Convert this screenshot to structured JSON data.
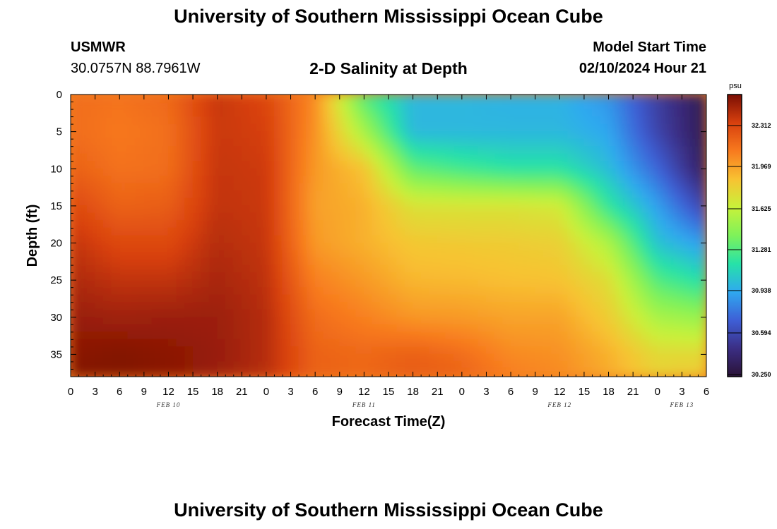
{
  "header": {
    "title": "University of Southern Mississippi Ocean Cube",
    "station": "USMWR",
    "coords": "30.0757N  88.7961W",
    "plot_title": "2-D Salinity at Depth",
    "model_start_label": "Model Start Time",
    "model_start_value": "02/10/2024 Hour 21"
  },
  "footer": {
    "title": "University of Southern Mississippi Ocean Cube"
  },
  "colorbar": {
    "unit": "psu",
    "ticks": [
      "32.312",
      "31.969",
      "31.625",
      "31.281",
      "30.938",
      "30.594",
      "30.250"
    ],
    "colormap": [
      "#2a1236",
      "#3b2e84",
      "#3e5fd6",
      "#2fa9f0",
      "#26e2a8",
      "#7ef25a",
      "#c8f23a",
      "#f8c232",
      "#f87a1e",
      "#d8400e",
      "#7a0e04"
    ]
  },
  "chart_data": {
    "type": "heatmap",
    "title": "2-D Salinity at Depth",
    "xlabel": "Forecast Time(Z)",
    "ylabel": "Depth (ft)",
    "x_tick_labels": [
      "0",
      "3",
      "6",
      "9",
      "12",
      "15",
      "18",
      "21",
      "0",
      "3",
      "6",
      "9",
      "12",
      "15",
      "18",
      "21",
      "0",
      "3",
      "6",
      "9",
      "12",
      "15",
      "18",
      "21",
      "0",
      "3",
      "6"
    ],
    "date_labels": [
      "FEB 10",
      "FEB 11",
      "FEB 12",
      "FEB 13"
    ],
    "y_tick_labels": [
      "0",
      "5",
      "10",
      "15",
      "20",
      "25",
      "30",
      "35"
    ],
    "x_range_hours": [
      0,
      78
    ],
    "ylim": [
      0,
      38
    ],
    "value_range": [
      30.25,
      32.5
    ],
    "unit": "psu",
    "description_of_field": "Approximate salinity (psu) by forecast hour (rows) and depth (columns)",
    "depths_ft": [
      0,
      5,
      10,
      15,
      20,
      25,
      30,
      35,
      38
    ],
    "hours": [
      0,
      6,
      12,
      18,
      24,
      30,
      36,
      42,
      48,
      54,
      60,
      66,
      72,
      78
    ],
    "values": [
      [
        32.1,
        32.1,
        32.15,
        32.25,
        32.33,
        32.38,
        32.43,
        32.46,
        32.48
      ],
      [
        32.08,
        32.06,
        32.08,
        32.14,
        32.24,
        32.33,
        32.41,
        32.48,
        32.48
      ],
      [
        32.12,
        32.09,
        32.1,
        32.16,
        32.24,
        32.33,
        32.42,
        32.46,
        32.46
      ],
      [
        32.32,
        32.31,
        32.32,
        32.33,
        32.36,
        32.39,
        32.42,
        32.43,
        32.42
      ],
      [
        32.25,
        32.28,
        32.3,
        32.31,
        32.32,
        32.34,
        32.36,
        32.36,
        32.35
      ],
      [
        32.0,
        31.98,
        31.95,
        31.93,
        31.95,
        32.03,
        32.1,
        32.14,
        32.14
      ],
      [
        31.25,
        31.5,
        31.82,
        31.88,
        31.88,
        31.95,
        32.03,
        32.12,
        32.12
      ],
      [
        30.98,
        30.98,
        31.3,
        31.68,
        31.8,
        31.86,
        31.96,
        32.15,
        32.17
      ],
      [
        30.98,
        30.98,
        31.22,
        31.67,
        31.79,
        31.85,
        31.95,
        32.1,
        32.14
      ],
      [
        30.96,
        30.98,
        31.16,
        31.67,
        31.78,
        31.83,
        31.92,
        32.0,
        32.04
      ],
      [
        30.96,
        30.98,
        31.16,
        31.64,
        31.76,
        31.82,
        31.92,
        31.98,
        32.0
      ],
      [
        30.86,
        30.92,
        31.0,
        31.18,
        31.52,
        31.7,
        31.78,
        31.88,
        31.9
      ],
      [
        30.55,
        30.58,
        30.72,
        30.9,
        31.02,
        31.26,
        31.5,
        31.72,
        31.76
      ],
      [
        30.32,
        30.32,
        30.35,
        30.56,
        30.88,
        31.13,
        31.44,
        31.72,
        31.8
      ]
    ]
  }
}
